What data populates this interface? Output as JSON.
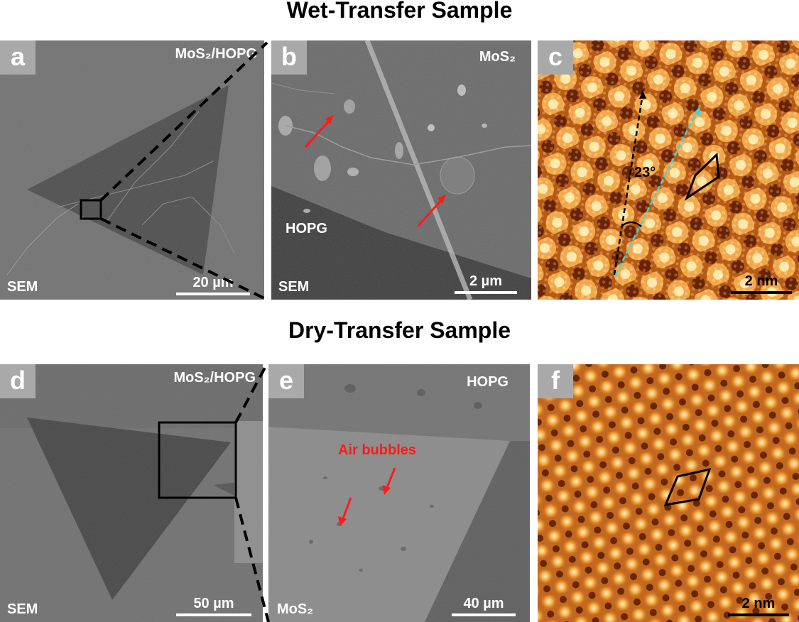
{
  "titles": {
    "wet": "Wet-Transfer Sample",
    "dry": "Dry-Transfer Sample"
  },
  "panels": {
    "a": {
      "label": "a",
      "material": "MoS₂/HOPG",
      "technique": "SEM",
      "scale": "20 µm"
    },
    "b": {
      "label": "b",
      "material": "MoS₂",
      "substrate": "HOPG",
      "technique": "SEM",
      "scale": "2 µm"
    },
    "c": {
      "label": "c",
      "angle": "23°",
      "scale": "2 nm"
    },
    "d": {
      "label": "d",
      "material": "MoS₂/HOPG",
      "technique": "SEM",
      "scale": "50 µm"
    },
    "e": {
      "label": "e",
      "substrate": "HOPG",
      "annotation": "Air bubbles",
      "material": "MoS₂",
      "scale": "40 µm"
    },
    "f": {
      "label": "f",
      "scale": "2 nm"
    }
  },
  "colors": {
    "sem_background": "#6e6e6e",
    "sem_flake": "#4a4a4a",
    "stm_dark": "#5a1e00",
    "stm_mid": "#d6781a",
    "stm_bright": "#fff2c0",
    "arrow_red": "#ff1a1a",
    "dashed_cyan": "#3cd6e0"
  }
}
